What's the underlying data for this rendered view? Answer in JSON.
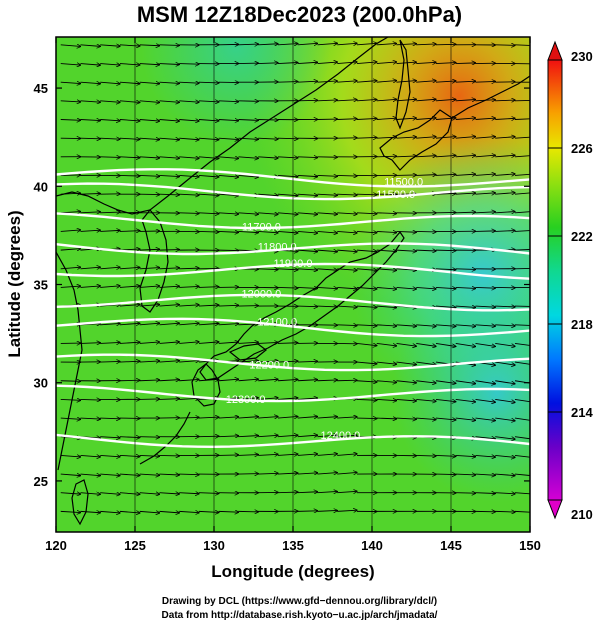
{
  "title": "MSM 12Z18Dec2023 (200.0hPa)",
  "chart_data": {
    "type": "map",
    "xlabel": "Longitude (degrees)",
    "ylabel": "Latitude  (degrees)",
    "xlim": [
      120,
      150
    ],
    "ylim": [
      22.4,
      47.6
    ],
    "xticks": [
      120,
      125,
      130,
      135,
      140,
      145,
      150
    ],
    "yticks": [
      25,
      30,
      35,
      40,
      45
    ],
    "colorbar": {
      "min": 210,
      "max": 230,
      "ticks": [
        210,
        214,
        218,
        222,
        226,
        230
      ]
    },
    "contours": [
      {
        "label": "11500.0",
        "lat": 40.6
      },
      {
        "label": "11500.0",
        "lat": 39.8
      },
      {
        "label": "11700.0",
        "lat": 38.3
      },
      {
        "label": "11800.0",
        "lat": 37.0
      },
      {
        "label": "11900.0",
        "lat": 35.8
      },
      {
        "label": "12000.0",
        "lat": 34.2
      },
      {
        "label": "12100.0",
        "lat": 33.0
      },
      {
        "label": "12200.0",
        "lat": 31.1
      },
      {
        "label": "12300.0",
        "lat": 29.5
      },
      {
        "label": "12400.0",
        "lat": 27.2
      }
    ]
  },
  "footer": {
    "line1": "Drawing by DCL (https://www.gfd−dennou.org/library/dcl/)",
    "line2": "Data from http://database.rish.kyoto−u.ac.jp/arch/jmadata/"
  }
}
